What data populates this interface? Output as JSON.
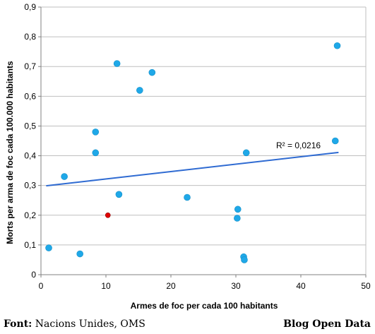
{
  "chart_data": {
    "type": "scatter",
    "title": "",
    "xlabel": "Armes de foc per cada 100 habitants",
    "ylabel": "Morts per arma de foc cada 100.000 habitants",
    "xlim": [
      0,
      50
    ],
    "ylim": [
      0,
      0.9
    ],
    "x_ticks": [
      "0",
      "10",
      "20",
      "30",
      "40",
      "50"
    ],
    "y_ticks": [
      "0",
      "0,1",
      "0,2",
      "0,3",
      "0,4",
      "0,5",
      "0,6",
      "0,7",
      "0,8",
      "0,9"
    ],
    "grid": true,
    "points": [
      {
        "x": 1.2,
        "y": 0.09
      },
      {
        "x": 3.6,
        "y": 0.33
      },
      {
        "x": 6.0,
        "y": 0.07
      },
      {
        "x": 8.4,
        "y": 0.48
      },
      {
        "x": 8.4,
        "y": 0.41
      },
      {
        "x": 10.3,
        "y": 0.2,
        "highlight": true
      },
      {
        "x": 11.7,
        "y": 0.71
      },
      {
        "x": 12.0,
        "y": 0.27
      },
      {
        "x": 15.2,
        "y": 0.62
      },
      {
        "x": 17.1,
        "y": 0.68
      },
      {
        "x": 22.5,
        "y": 0.26
      },
      {
        "x": 30.3,
        "y": 0.22
      },
      {
        "x": 30.2,
        "y": 0.19
      },
      {
        "x": 31.2,
        "y": 0.06
      },
      {
        "x": 31.3,
        "y": 0.05
      },
      {
        "x": 31.6,
        "y": 0.41
      },
      {
        "x": 45.3,
        "y": 0.45
      },
      {
        "x": 45.6,
        "y": 0.77
      }
    ],
    "trendline": {
      "x": [
        0.8,
        45.8
      ],
      "y": [
        0.299,
        0.411
      ]
    },
    "r2_label": "R² = 0,0216",
    "colors": {
      "points": "#1FA8E8",
      "highlight": "#E00000",
      "trendline": "#2F6BD2",
      "grid": "#BFBFBF",
      "axis": "#808080"
    }
  },
  "footer": {
    "source_label": "Font:",
    "source_text": " Nacions Unides, OMS",
    "credit": "Blog Open Data"
  }
}
